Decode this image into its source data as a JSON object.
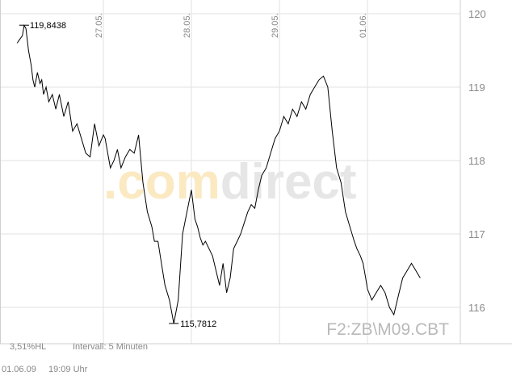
{
  "chart_data": {
    "type": "line",
    "symbol": "F2:ZB\\M09.CBT",
    "watermark": ".comdirect",
    "y_ticks": [
      "120",
      "119",
      "118",
      "117",
      "116"
    ],
    "y_tick_values": [
      120,
      119,
      118,
      117,
      116
    ],
    "ylim": [
      115.65,
      120.2
    ],
    "x_date_labels": [
      "27.05.",
      "28.05.",
      "29.05.",
      "01.06."
    ],
    "x_date_positions": [
      1,
      2,
      3,
      4
    ],
    "xlim": [
      0,
      5
    ],
    "grid": true,
    "max_label": "119,8438",
    "max_value": 119.8438,
    "min_label": "115,7812",
    "min_value": 115.7812,
    "x": [
      0.02,
      0.05,
      0.08,
      0.1,
      0.12,
      0.15,
      0.18,
      0.2,
      0.22,
      0.25,
      0.28,
      0.3,
      0.32,
      0.35,
      0.38,
      0.42,
      0.46,
      0.5,
      0.55,
      0.6,
      0.65,
      0.7,
      0.75,
      0.8,
      0.85,
      0.9,
      0.95,
      1.0,
      1.02,
      1.05,
      1.08,
      1.12,
      1.16,
      1.2,
      1.25,
      1.3,
      1.35,
      1.4,
      1.45,
      1.5,
      1.55,
      1.58,
      1.62,
      1.66,
      1.7,
      1.75,
      1.8,
      1.85,
      1.9,
      1.95,
      2.0,
      2.02,
      2.04,
      2.07,
      2.1,
      2.13,
      2.16,
      2.2,
      2.24,
      2.28,
      2.32,
      2.36,
      2.4,
      2.44,
      2.48,
      2.52,
      2.56,
      2.6,
      2.64,
      2.68,
      2.72,
      2.76,
      2.8,
      2.85,
      2.9,
      2.95,
      3.0,
      3.05,
      3.1,
      3.15,
      3.2,
      3.25,
      3.3,
      3.35,
      3.4,
      3.45,
      3.5,
      3.55,
      3.6,
      3.65,
      3.7,
      3.75,
      3.8,
      3.85,
      3.88,
      3.92,
      3.95,
      3.98,
      4.0,
      4.05,
      4.1,
      4.15,
      4.2,
      4.25,
      4.3,
      4.35,
      4.4,
      4.45,
      4.5,
      4.55,
      4.6
    ],
    "y": [
      119.6,
      119.65,
      119.7,
      119.84,
      119.8,
      119.5,
      119.3,
      119.1,
      119.0,
      119.2,
      119.05,
      119.1,
      118.9,
      119.0,
      118.8,
      118.9,
      118.7,
      118.9,
      118.6,
      118.8,
      118.4,
      118.5,
      118.3,
      118.1,
      118.05,
      118.5,
      118.2,
      118.35,
      118.3,
      118.1,
      117.9,
      118.0,
      118.15,
      117.9,
      118.05,
      118.15,
      118.1,
      118.35,
      117.7,
      117.3,
      117.1,
      116.9,
      116.9,
      116.6,
      116.3,
      116.1,
      115.78,
      116.1,
      117.0,
      117.3,
      117.6,
      117.4,
      117.2,
      117.1,
      116.95,
      116.85,
      116.9,
      116.8,
      116.7,
      116.5,
      116.3,
      116.6,
      116.2,
      116.4,
      116.8,
      116.9,
      117.0,
      117.15,
      117.3,
      117.4,
      117.35,
      117.6,
      117.8,
      117.9,
      118.1,
      118.3,
      118.4,
      118.6,
      118.5,
      118.7,
      118.6,
      118.8,
      118.7,
      118.9,
      119.0,
      119.1,
      119.15,
      119.0,
      118.4,
      117.9,
      117.7,
      117.3,
      117.1,
      116.9,
      116.8,
      116.7,
      116.6,
      116.4,
      116.25,
      116.1,
      116.2,
      116.3,
      116.2,
      116.0,
      115.9,
      116.15,
      116.4,
      116.5,
      116.6,
      116.5,
      116.4
    ],
    "interval_label": "Intervall: 5 Minuten",
    "hl_label": "3,51%HL",
    "date_label": "01.06.09",
    "time_label": "19:09 Uhr",
    "line_color": "#000000",
    "grid_color": "#e2e2e2",
    "watermark_orange": "#fbe9c2",
    "watermark_gray": "#e6e6e6"
  }
}
